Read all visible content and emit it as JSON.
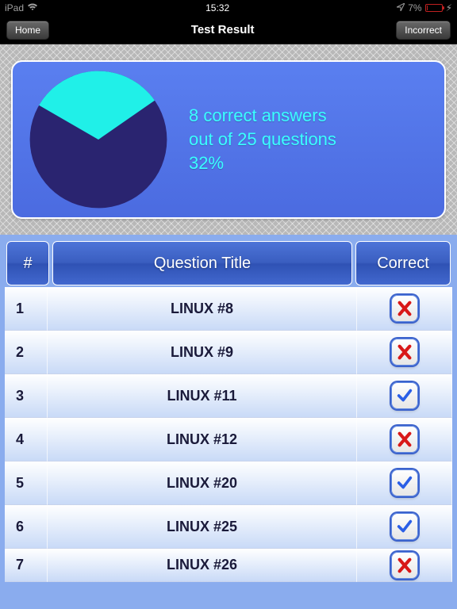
{
  "status_bar": {
    "carrier": "iPad",
    "wifi": true,
    "time": "15:32",
    "location_icon": true,
    "battery_percent": "7%",
    "charging": true
  },
  "nav": {
    "left_button": "Home",
    "title": "Test Result",
    "right_button": "Incorrect"
  },
  "summary": {
    "line1": "8 correct answers",
    "line2": "out of 25 questions",
    "line3": " 32%",
    "text_color": "#36f8f8"
  },
  "pie": {
    "correct_pct": 32,
    "correct_color": "#20f0e8",
    "incorrect_color": "#2a2470",
    "start_angle_deg": -150
  },
  "panel": {
    "gradient_top": "#5a7ff0",
    "gradient_bottom": "#4b6be0",
    "border_color": "#ffffff"
  },
  "table": {
    "headers": {
      "num": "#",
      "title": "Question Title",
      "correct": "Correct"
    },
    "rows": [
      {
        "n": "1",
        "title": "LINUX #8",
        "correct": false
      },
      {
        "n": "2",
        "title": "LINUX #9",
        "correct": false
      },
      {
        "n": "3",
        "title": "LINUX #11",
        "correct": true
      },
      {
        "n": "4",
        "title": "LINUX #12",
        "correct": false
      },
      {
        "n": "5",
        "title": "LINUX #20",
        "correct": true
      },
      {
        "n": "6",
        "title": "LINUX #25",
        "correct": true
      },
      {
        "n": "7",
        "title": "LINUX #26",
        "correct": false
      }
    ],
    "header_gradient": [
      "#4d74d8",
      "#3a5ec0",
      "#2f52b4",
      "#4268ce"
    ],
    "row_gradient": [
      "#ffffff",
      "#c9daf7"
    ],
    "check_color": "#2b5fe6",
    "x_color": "#d81818"
  }
}
